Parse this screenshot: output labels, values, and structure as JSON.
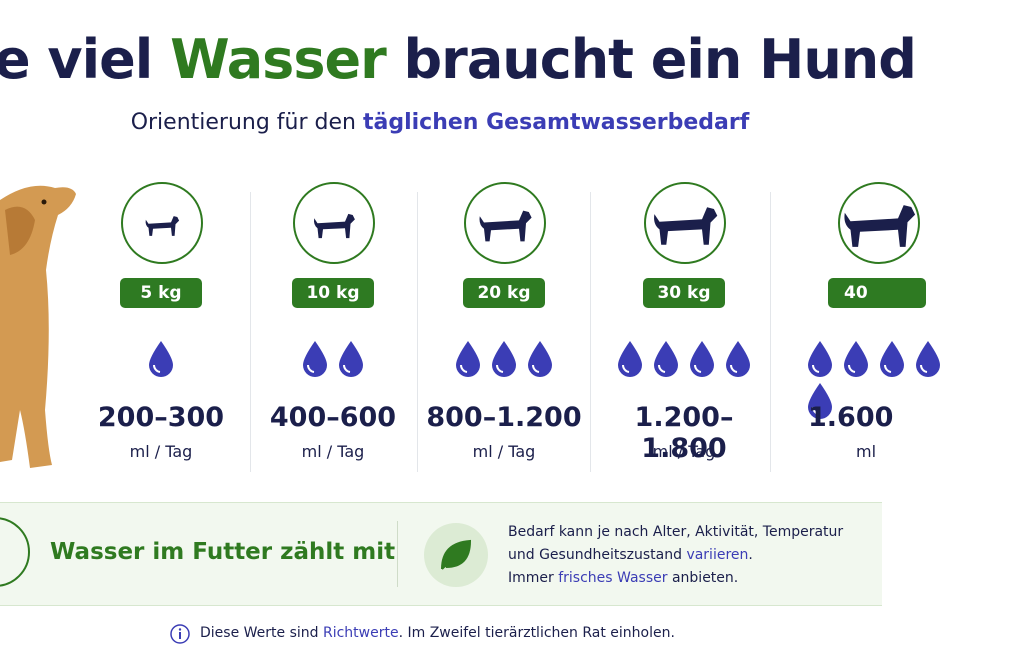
{
  "header": {
    "title": [
      "e viel",
      "Wasser",
      "braucht ein Hund"
    ],
    "subtitle": [
      "Orientierung für den",
      "täglichen Gesamtwasserbedarf"
    ]
  },
  "columns": [
    {
      "weight": "5 kg",
      "range": "200–300",
      "unit": "ml / Tag"
    },
    {
      "weight": "10 kg",
      "range": "400–600",
      "unit": "ml / Tag"
    },
    {
      "weight": "20 kg",
      "range": "800–1.200",
      "unit": "ml / Tag"
    },
    {
      "weight": "30 kg",
      "range": "1.200–1.800",
      "unit": "ml / Tag"
    },
    {
      "weight": "40",
      "range": "1.600",
      "unit": "ml"
    }
  ],
  "panel": {
    "heading": "Wasser im Futter zählt mit",
    "note": [
      [
        "Bedarf kann je nach Alter, Aktivität, Temperatur"
      ],
      [
        "und Gesundheitszustand",
        "variieren",
        "."
      ],
      [
        "Immer",
        "frisches Wasser",
        "anbieten."
      ]
    ]
  },
  "footer": [
    "Diese Werte sind",
    "Richtwerte",
    ". Im Zweifel tierärztlichen Rat einholen."
  ]
}
